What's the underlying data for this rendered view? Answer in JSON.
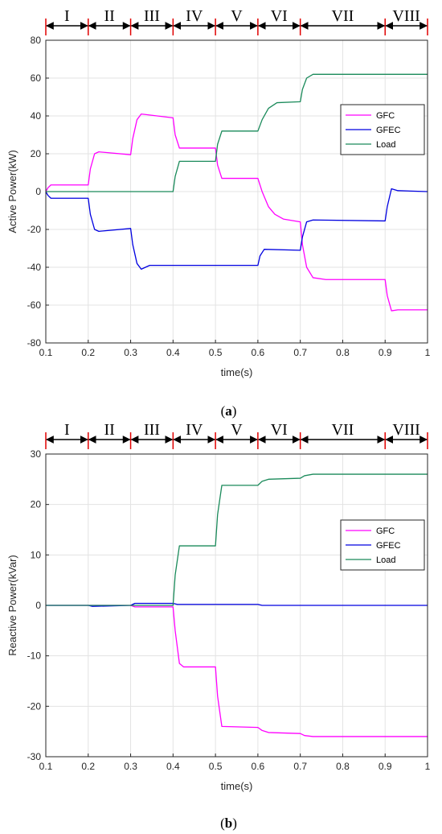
{
  "chart_data": [
    {
      "type": "line",
      "caption": {
        "open": "(",
        "letter": "a",
        "close": ")"
      },
      "xlabel": "time(s)",
      "ylabel": "Active Power(kW)",
      "xlim": [
        0.1,
        1
      ],
      "ylim": [
        -80,
        80
      ],
      "xticks": [
        "0.1",
        "0.2",
        "0.3",
        "0.4",
        "0.5",
        "0.6",
        "0.7",
        "0.8",
        "0.9",
        "1"
      ],
      "yticks": [
        "-80",
        "-60",
        "-40",
        "-20",
        "0",
        "20",
        "40",
        "60",
        "80"
      ],
      "grid": true,
      "legend_position": "upper-right",
      "stages": [
        {
          "label": "I",
          "start": 0.1,
          "end": 0.2
        },
        {
          "label": "II",
          "start": 0.2,
          "end": 0.3
        },
        {
          "label": "III",
          "start": 0.3,
          "end": 0.4
        },
        {
          "label": "IV",
          "start": 0.4,
          "end": 0.5
        },
        {
          "label": "V",
          "start": 0.5,
          "end": 0.6
        },
        {
          "label": "VI",
          "start": 0.6,
          "end": 0.7
        },
        {
          "label": "VII",
          "start": 0.7,
          "end": 0.9
        },
        {
          "label": "VIII",
          "start": 0.9,
          "end": 1.0
        }
      ],
      "series": [
        {
          "name": "GFC",
          "color": "#ff00ff",
          "points": [
            [
              0.1,
              0
            ],
            [
              0.105,
              2
            ],
            [
              0.112,
              3.5
            ],
            [
              0.2,
              3.5
            ],
            [
              0.205,
              12
            ],
            [
              0.215,
              20
            ],
            [
              0.225,
              21
            ],
            [
              0.3,
              19.5
            ],
            [
              0.305,
              28
            ],
            [
              0.315,
              38
            ],
            [
              0.325,
              41
            ],
            [
              0.4,
              39
            ],
            [
              0.405,
              30
            ],
            [
              0.415,
              23
            ],
            [
              0.5,
              23
            ],
            [
              0.505,
              14
            ],
            [
              0.515,
              7
            ],
            [
              0.6,
              7
            ],
            [
              0.61,
              0
            ],
            [
              0.625,
              -8
            ],
            [
              0.64,
              -12
            ],
            [
              0.66,
              -14.5
            ],
            [
              0.7,
              -16
            ],
            [
              0.705,
              -28
            ],
            [
              0.715,
              -40
            ],
            [
              0.73,
              -45.5
            ],
            [
              0.76,
              -46.5
            ],
            [
              0.9,
              -46.5
            ],
            [
              0.905,
              -55
            ],
            [
              0.915,
              -63
            ],
            [
              0.93,
              -62.5
            ],
            [
              1.0,
              -62.5
            ]
          ]
        },
        {
          "name": "GFEC",
          "color": "#0000e0",
          "points": [
            [
              0.1,
              0
            ],
            [
              0.105,
              -2
            ],
            [
              0.112,
              -3.5
            ],
            [
              0.2,
              -3.5
            ],
            [
              0.205,
              -12
            ],
            [
              0.215,
              -20
            ],
            [
              0.225,
              -21
            ],
            [
              0.3,
              -19.5
            ],
            [
              0.305,
              -28
            ],
            [
              0.315,
              -38
            ],
            [
              0.325,
              -41
            ],
            [
              0.345,
              -39
            ],
            [
              0.6,
              -39
            ],
            [
              0.605,
              -34
            ],
            [
              0.615,
              -30.5
            ],
            [
              0.7,
              -31
            ],
            [
              0.705,
              -24
            ],
            [
              0.715,
              -16
            ],
            [
              0.73,
              -15
            ],
            [
              0.9,
              -15.5
            ],
            [
              0.905,
              -8
            ],
            [
              0.915,
              1.5
            ],
            [
              0.93,
              0.5
            ],
            [
              1.0,
              0
            ]
          ]
        },
        {
          "name": "Load",
          "color": "#1a8a5a",
          "points": [
            [
              0.1,
              0
            ],
            [
              0.4,
              0
            ],
            [
              0.405,
              8
            ],
            [
              0.415,
              16
            ],
            [
              0.5,
              16
            ],
            [
              0.505,
              25
            ],
            [
              0.515,
              32
            ],
            [
              0.6,
              32
            ],
            [
              0.61,
              38
            ],
            [
              0.625,
              44
            ],
            [
              0.645,
              47
            ],
            [
              0.7,
              47.5
            ],
            [
              0.705,
              54
            ],
            [
              0.715,
              60
            ],
            [
              0.73,
              62
            ],
            [
              1.0,
              62
            ]
          ]
        }
      ]
    },
    {
      "type": "line",
      "caption": {
        "open": "(",
        "letter": "b",
        "close": ")"
      },
      "xlabel": "time(s)",
      "ylabel": "Reactive Power(kVar)",
      "xlim": [
        0.1,
        1
      ],
      "ylim": [
        -30,
        30
      ],
      "xticks": [
        "0.1",
        "0.2",
        "0.3",
        "0.4",
        "0.5",
        "0.6",
        "0.7",
        "0.8",
        "0.9",
        "1"
      ],
      "yticks": [
        "-30",
        "-20",
        "-10",
        "0",
        "10",
        "20",
        "30"
      ],
      "grid": true,
      "legend_position": "upper-right",
      "stages": [
        {
          "label": "I",
          "start": 0.1,
          "end": 0.2
        },
        {
          "label": "II",
          "start": 0.2,
          "end": 0.3
        },
        {
          "label": "III",
          "start": 0.3,
          "end": 0.4
        },
        {
          "label": "IV",
          "start": 0.4,
          "end": 0.5
        },
        {
          "label": "V",
          "start": 0.5,
          "end": 0.6
        },
        {
          "label": "VI",
          "start": 0.6,
          "end": 0.7
        },
        {
          "label": "VII",
          "start": 0.7,
          "end": 0.9
        },
        {
          "label": "VIII",
          "start": 0.9,
          "end": 1.0
        }
      ],
      "series": [
        {
          "name": "GFC",
          "color": "#ff00ff",
          "points": [
            [
              0.1,
              0
            ],
            [
              0.3,
              0
            ],
            [
              0.31,
              -0.3
            ],
            [
              0.4,
              -0.3
            ],
            [
              0.405,
              -5
            ],
            [
              0.415,
              -11.5
            ],
            [
              0.425,
              -12.2
            ],
            [
              0.5,
              -12.2
            ],
            [
              0.505,
              -18
            ],
            [
              0.515,
              -24
            ],
            [
              0.6,
              -24.2
            ],
            [
              0.61,
              -24.8
            ],
            [
              0.625,
              -25.2
            ],
            [
              0.7,
              -25.4
            ],
            [
              0.71,
              -25.8
            ],
            [
              0.73,
              -26
            ],
            [
              1.0,
              -26
            ]
          ]
        },
        {
          "name": "GFEC",
          "color": "#0000e0",
          "points": [
            [
              0.1,
              0
            ],
            [
              0.2,
              0
            ],
            [
              0.21,
              -0.2
            ],
            [
              0.3,
              0
            ],
            [
              0.31,
              0.4
            ],
            [
              0.4,
              0.4
            ],
            [
              0.41,
              0.2
            ],
            [
              0.6,
              0.2
            ],
            [
              0.61,
              0
            ],
            [
              1.0,
              0
            ]
          ]
        },
        {
          "name": "Load",
          "color": "#1a8a5a",
          "points": [
            [
              0.1,
              0
            ],
            [
              0.4,
              0
            ],
            [
              0.405,
              6
            ],
            [
              0.415,
              11.8
            ],
            [
              0.5,
              11.8
            ],
            [
              0.505,
              18
            ],
            [
              0.515,
              23.8
            ],
            [
              0.6,
              23.8
            ],
            [
              0.61,
              24.6
            ],
            [
              0.625,
              25
            ],
            [
              0.7,
              25.2
            ],
            [
              0.71,
              25.7
            ],
            [
              0.73,
              26
            ],
            [
              1.0,
              26
            ]
          ]
        }
      ]
    }
  ]
}
